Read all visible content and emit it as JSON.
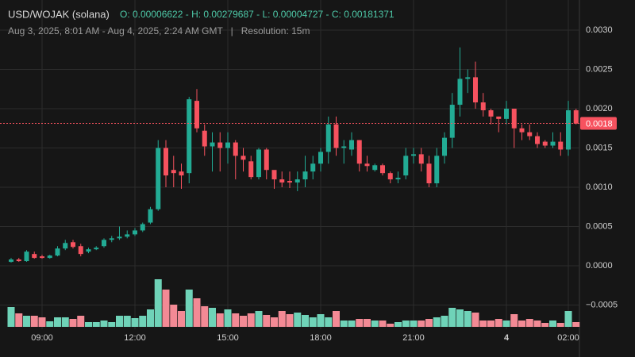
{
  "chart_data": {
    "type": "candlestick",
    "title": "USD/WOJAK (solana)",
    "ohlc_text": "O: 0.00006622 - H: 0.00279687 - L: 0.00004727 - C: 0.00181371",
    "subtitle": "Aug 3, 2025, 8:01 AM - Aug 4, 2025, 2:24 AM GMT   |   Resolution: 15m",
    "categories": [
      null,
      null,
      null,
      null,
      "09:00",
      null,
      null,
      null,
      null,
      null,
      null,
      null,
      null,
      null,
      null,
      null,
      "12:00",
      null,
      null,
      null,
      null,
      null,
      null,
      null,
      null,
      null,
      null,
      null,
      "15:00",
      null,
      null,
      null,
      null,
      null,
      null,
      null,
      null,
      null,
      null,
      null,
      "18:00",
      null,
      null,
      null,
      null,
      null,
      null,
      null,
      null,
      null,
      null,
      null,
      "21:00",
      null,
      null,
      null,
      null,
      null,
      null,
      null,
      null,
      null,
      null,
      null,
      "4",
      null,
      null,
      null,
      null,
      null,
      null,
      null,
      "02:00",
      null
    ],
    "open": [
      5e-05,
      8e-05,
      6e-05,
      0.00015,
      0.00012,
      0.0001,
      0.00013,
      0.00022,
      0.0003,
      0.00025,
      0.00018,
      0.00021,
      0.00025,
      0.00033,
      0.00035,
      0.00037,
      0.0004,
      0.00045,
      0.00055,
      0.00072,
      0.0015,
      0.00122,
      0.0012,
      0.00118,
      0.0021,
      0.00172,
      0.00152,
      0.00157,
      0.0015,
      0.00157,
      0.0014,
      0.00133,
      0.00113,
      0.00148,
      0.00122,
      0.0011,
      0.00108,
      0.00106,
      0.0011,
      0.0012,
      0.0013,
      0.00145,
      0.0018,
      0.0015,
      0.00148,
      0.0016,
      0.0013,
      0.00122,
      0.00128,
      0.00118,
      0.0011,
      0.00115,
      0.0014,
      0.00142,
      0.0013,
      0.00105,
      0.0014,
      0.00163,
      0.00205,
      0.00238,
      0.0024,
      0.00208,
      0.00198,
      0.0019,
      0.00187,
      0.002,
      0.00175,
      0.0017,
      0.00165,
      0.00158,
      0.00153,
      0.00158,
      0.00148,
      0.00198
    ],
    "high": [
      0.0001,
      0.0001,
      0.0002,
      0.00018,
      0.00014,
      0.00014,
      0.00025,
      0.00033,
      0.00033,
      0.00028,
      0.00023,
      0.00025,
      0.00035,
      0.00038,
      0.0005,
      0.00045,
      0.00048,
      0.00055,
      0.00075,
      0.0016,
      0.0016,
      0.0014,
      0.0013,
      0.00215,
      0.00225,
      0.0018,
      0.0017,
      0.0017,
      0.0017,
      0.0016,
      0.0015,
      0.0014,
      0.0015,
      0.0015,
      0.0012,
      0.0012,
      0.0012,
      0.0012,
      0.0014,
      0.0014,
      0.0015,
      0.0019,
      0.0019,
      0.0016,
      0.0017,
      0.0016,
      0.0014,
      0.0013,
      0.0013,
      0.0012,
      0.0012,
      0.0015,
      0.0015,
      0.0015,
      0.0014,
      0.0015,
      0.0017,
      0.0022,
      0.00278,
      0.0025,
      0.0026,
      0.0022,
      0.002,
      0.0019,
      0.0021,
      0.002,
      0.0018,
      0.0018,
      0.0017,
      0.0016,
      0.0017,
      0.0017,
      0.0021,
      0.002
    ],
    "low": [
      4e-05,
      5e-05,
      5e-05,
      9e-05,
      9e-05,
      9e-05,
      0.00012,
      0.0002,
      0.00022,
      0.00012,
      0.00016,
      0.0002,
      0.00023,
      0.0003,
      0.00033,
      0.00035,
      0.00038,
      0.00043,
      0.00053,
      0.0007,
      0.001,
      0.001,
      0.00098,
      0.00105,
      0.0017,
      0.0014,
      0.0012,
      0.0012,
      0.0013,
      0.0011,
      0.0012,
      0.0011,
      0.0011,
      0.0011,
      0.00098,
      0.001,
      0.00099,
      0.00095,
      0.001,
      0.0011,
      0.0012,
      0.0013,
      0.0014,
      0.0013,
      0.0014,
      0.0012,
      0.0012,
      0.0012,
      0.00115,
      0.00105,
      0.00105,
      0.0011,
      0.0013,
      0.0012,
      0.001,
      0.001,
      0.0013,
      0.0015,
      0.0019,
      0.0022,
      0.002,
      0.0019,
      0.0018,
      0.0017,
      0.0018,
      0.0015,
      0.0016,
      0.0016,
      0.0015,
      0.0015,
      0.0015,
      0.0014,
      0.0014,
      0.0018
    ],
    "close": [
      8e-05,
      6e-05,
      0.00018,
      0.0001,
      0.0001,
      0.00013,
      0.00022,
      0.00029,
      0.00024,
      0.00015,
      0.00021,
      0.00023,
      0.00033,
      0.00035,
      0.00037,
      0.0004,
      0.00045,
      0.00053,
      0.00072,
      0.0015,
      0.00115,
      0.00118,
      0.00115,
      0.00212,
      0.00175,
      0.00152,
      0.00157,
      0.0015,
      0.00157,
      0.0014,
      0.00135,
      0.00113,
      0.00148,
      0.00122,
      0.0011,
      0.00106,
      0.00106,
      0.0011,
      0.0012,
      0.0013,
      0.00145,
      0.0018,
      0.0015,
      0.00152,
      0.0016,
      0.0013,
      0.00127,
      0.00128,
      0.00118,
      0.0011,
      0.00112,
      0.0014,
      0.00142,
      0.0013,
      0.00105,
      0.0014,
      0.00163,
      0.00205,
      0.00238,
      0.0024,
      0.00208,
      0.00198,
      0.0019,
      0.00187,
      0.002,
      0.00175,
      0.0017,
      0.00165,
      0.00155,
      0.00153,
      0.00158,
      0.00148,
      0.00198,
      0.00181
    ],
    "volume": [
      25,
      17,
      14,
      14,
      12,
      7,
      12,
      12,
      10,
      14,
      6,
      6,
      8,
      6,
      14,
      14,
      11,
      14,
      22,
      60,
      47,
      28,
      20,
      47,
      36,
      26,
      24,
      17,
      22,
      17,
      14,
      17,
      20,
      15,
      12,
      20,
      16,
      18,
      15,
      12,
      16,
      12,
      20,
      8,
      8,
      10,
      10,
      8,
      8,
      4,
      6,
      8,
      8,
      8,
      10,
      12,
      14,
      24,
      22,
      20,
      18,
      8,
      8,
      10,
      8,
      16,
      8,
      10,
      8,
      5,
      8,
      5,
      20,
      6
    ],
    "up_color": "#22ab94",
    "down_color": "#f7525f",
    "up_volume_color": "#6fd3b8",
    "down_volume_color": "#f38a95",
    "last_price": 0.00181371,
    "last_price_label": "0.0018",
    "ylim": [
      -0.0008,
      0.0033
    ],
    "yticks": [
      {
        "value": -0.0005,
        "label": "−0.0005"
      },
      {
        "value": 0,
        "label": "0.0000"
      },
      {
        "value": 0.0005,
        "label": "0.0005"
      },
      {
        "value": 0.001,
        "label": "0.0010"
      },
      {
        "value": 0.0015,
        "label": "0.0015"
      },
      {
        "value": 0.002,
        "label": "0.0020"
      },
      {
        "value": 0.0025,
        "label": "0.0025"
      },
      {
        "value": 0.003,
        "label": "0.0030"
      }
    ],
    "grid": true
  }
}
